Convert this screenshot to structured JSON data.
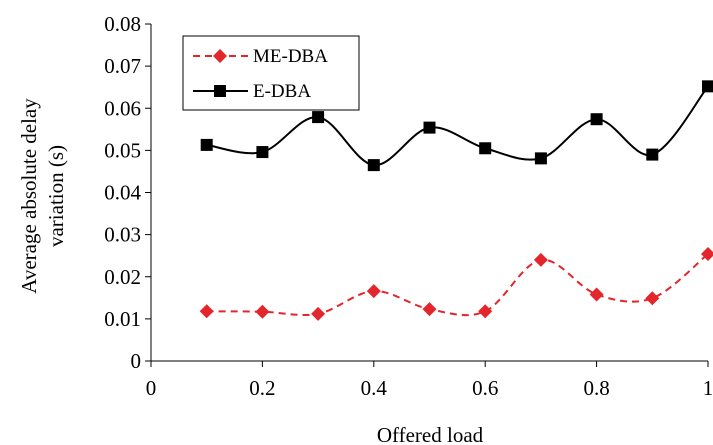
{
  "chart_data": {
    "type": "line",
    "x": [
      0.1,
      0.2,
      0.3,
      0.4,
      0.5,
      0.6,
      0.7,
      0.8,
      0.9,
      1.0
    ],
    "series": [
      {
        "name": "ME-DBA",
        "values": [
          0.0118,
          0.0117,
          0.0112,
          0.0166,
          0.0123,
          0.0118,
          0.024,
          0.0158,
          0.0149,
          0.0254
        ],
        "color": "#e3262b",
        "line_style": "dashed",
        "marker": "diamond",
        "smooth": true
      },
      {
        "name": "E-DBA",
        "values": [
          0.0513,
          0.0496,
          0.0579,
          0.0465,
          0.0554,
          0.0505,
          0.0481,
          0.0574,
          0.049,
          0.0652
        ],
        "color": "#000000",
        "line_style": "solid",
        "marker": "square",
        "smooth": true
      }
    ],
    "xlabel": "Offered load",
    "ylabel_lines": [
      "Average absolute delay",
      "variation (s)"
    ],
    "xlim": [
      0,
      1
    ],
    "ylim": [
      0,
      0.08
    ],
    "x_ticks": [
      "0",
      "0.2",
      "0.4",
      "0.6",
      "0.8",
      "1"
    ],
    "x_tick_values": [
      0,
      0.2,
      0.4,
      0.6,
      0.8,
      1
    ],
    "y_ticks": [
      "0",
      "0.01",
      "0.02",
      "0.03",
      "0.04",
      "0.05",
      "0.06",
      "0.07",
      "0.08"
    ],
    "y_tick_values": [
      0,
      0.01,
      0.02,
      0.03,
      0.04,
      0.05,
      0.06,
      0.07,
      0.08
    ],
    "grid": false,
    "legend_position": "top-left"
  }
}
